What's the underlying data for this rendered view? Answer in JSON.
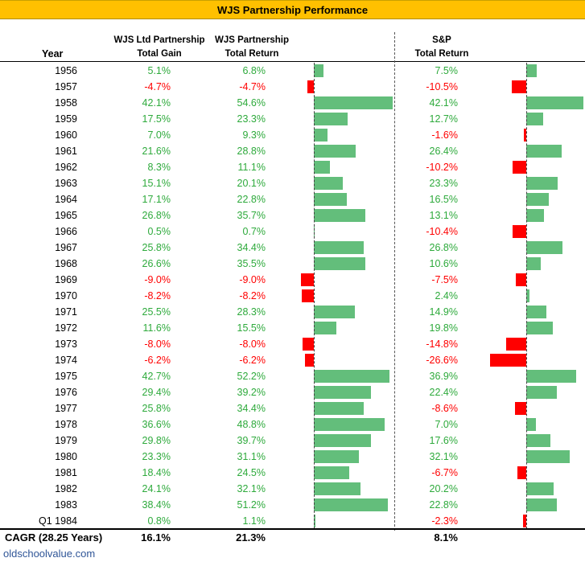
{
  "title": "WJS Partnership Performance",
  "headers": {
    "year": "Year",
    "gain_line1": "WJS Ltd Partnership",
    "gain_line2": "Total Gain",
    "ret_line1": "WJS Partnership",
    "ret_line2": "Total Return",
    "sp_line1": "S&P",
    "sp_line2": "Total Return"
  },
  "chart_data": {
    "type": "table",
    "columns": [
      "Year",
      "WJS Ltd Partnership Total Gain",
      "WJS Partnership Total Return",
      "S&P Total Return"
    ],
    "rows": [
      {
        "year": "1956",
        "gain": "5.1%",
        "ret": "6.8%",
        "sp": "7.5%",
        "ret_value": 6.8,
        "sp_value": 7.5
      },
      {
        "year": "1957",
        "gain": "-4.7%",
        "ret": "-4.7%",
        "sp": "-10.5%",
        "ret_value": -4.7,
        "sp_value": -10.5
      },
      {
        "year": "1958",
        "gain": "42.1%",
        "ret": "54.6%",
        "sp": "42.1%",
        "ret_value": 54.6,
        "sp_value": 42.1
      },
      {
        "year": "1959",
        "gain": "17.5%",
        "ret": "23.3%",
        "sp": "12.7%",
        "ret_value": 23.3,
        "sp_value": 12.7
      },
      {
        "year": "1960",
        "gain": "7.0%",
        "ret": "9.3%",
        "sp": "-1.6%",
        "ret_value": 9.3,
        "sp_value": -1.6
      },
      {
        "year": "1961",
        "gain": "21.6%",
        "ret": "28.8%",
        "sp": "26.4%",
        "ret_value": 28.8,
        "sp_value": 26.4
      },
      {
        "year": "1962",
        "gain": "8.3%",
        "ret": "11.1%",
        "sp": "-10.2%",
        "ret_value": 11.1,
        "sp_value": -10.2
      },
      {
        "year": "1963",
        "gain": "15.1%",
        "ret": "20.1%",
        "sp": "23.3%",
        "ret_value": 20.1,
        "sp_value": 23.3
      },
      {
        "year": "1964",
        "gain": "17.1%",
        "ret": "22.8%",
        "sp": "16.5%",
        "ret_value": 22.8,
        "sp_value": 16.5
      },
      {
        "year": "1965",
        "gain": "26.8%",
        "ret": "35.7%",
        "sp": "13.1%",
        "ret_value": 35.7,
        "sp_value": 13.1
      },
      {
        "year": "1966",
        "gain": "0.5%",
        "ret": "0.7%",
        "sp": "-10.4%",
        "ret_value": 0.7,
        "sp_value": -10.4
      },
      {
        "year": "1967",
        "gain": "25.8%",
        "ret": "34.4%",
        "sp": "26.8%",
        "ret_value": 34.4,
        "sp_value": 26.8
      },
      {
        "year": "1968",
        "gain": "26.6%",
        "ret": "35.5%",
        "sp": "10.6%",
        "ret_value": 35.5,
        "sp_value": 10.6
      },
      {
        "year": "1969",
        "gain": "-9.0%",
        "ret": "-9.0%",
        "sp": "-7.5%",
        "ret_value": -9.0,
        "sp_value": -7.5
      },
      {
        "year": "1970",
        "gain": "-8.2%",
        "ret": "-8.2%",
        "sp": "2.4%",
        "ret_value": -8.2,
        "sp_value": 2.4
      },
      {
        "year": "1971",
        "gain": "25.5%",
        "ret": "28.3%",
        "sp": "14.9%",
        "ret_value": 28.3,
        "sp_value": 14.9
      },
      {
        "year": "1972",
        "gain": "11.6%",
        "ret": "15.5%",
        "sp": "19.8%",
        "ret_value": 15.5,
        "sp_value": 19.8
      },
      {
        "year": "1973",
        "gain": "-8.0%",
        "ret": "-8.0%",
        "sp": "-14.8%",
        "ret_value": -8.0,
        "sp_value": -14.8
      },
      {
        "year": "1974",
        "gain": "-6.2%",
        "ret": "-6.2%",
        "sp": "-26.6%",
        "ret_value": -6.2,
        "sp_value": -26.6
      },
      {
        "year": "1975",
        "gain": "42.7%",
        "ret": "52.2%",
        "sp": "36.9%",
        "ret_value": 52.2,
        "sp_value": 36.9
      },
      {
        "year": "1976",
        "gain": "29.4%",
        "ret": "39.2%",
        "sp": "22.4%",
        "ret_value": 39.2,
        "sp_value": 22.4
      },
      {
        "year": "1977",
        "gain": "25.8%",
        "ret": "34.4%",
        "sp": "-8.6%",
        "ret_value": 34.4,
        "sp_value": -8.6
      },
      {
        "year": "1978",
        "gain": "36.6%",
        "ret": "48.8%",
        "sp": "7.0%",
        "ret_value": 48.8,
        "sp_value": 7.0
      },
      {
        "year": "1979",
        "gain": "29.8%",
        "ret": "39.7%",
        "sp": "17.6%",
        "ret_value": 39.7,
        "sp_value": 17.6
      },
      {
        "year": "1980",
        "gain": "23.3%",
        "ret": "31.1%",
        "sp": "32.1%",
        "ret_value": 31.1,
        "sp_value": 32.1
      },
      {
        "year": "1981",
        "gain": "18.4%",
        "ret": "24.5%",
        "sp": "-6.7%",
        "ret_value": 24.5,
        "sp_value": -6.7
      },
      {
        "year": "1982",
        "gain": "24.1%",
        "ret": "32.1%",
        "sp": "20.2%",
        "ret_value": 32.1,
        "sp_value": 20.2
      },
      {
        "year": "1983",
        "gain": "38.4%",
        "ret": "51.2%",
        "sp": "22.8%",
        "ret_value": 51.2,
        "sp_value": 22.8
      },
      {
        "year": "Q1 1984",
        "gain": "0.8%",
        "ret": "1.1%",
        "sp": "-2.3%",
        "ret_value": 1.1,
        "sp_value": -2.3
      }
    ],
    "cagr": {
      "label": "CAGR (28.25 Years)",
      "gain": "16.1%",
      "ret": "21.3%",
      "sp": "8.1%"
    }
  },
  "colors": {
    "title_bg": "#ffc000",
    "positive": "#2eaa3c",
    "negative": "#ff0000",
    "bar_up": "#63be7b",
    "bar_down": "#ff0000",
    "source": "#2f5597"
  },
  "source": "oldschoolvalue.com"
}
